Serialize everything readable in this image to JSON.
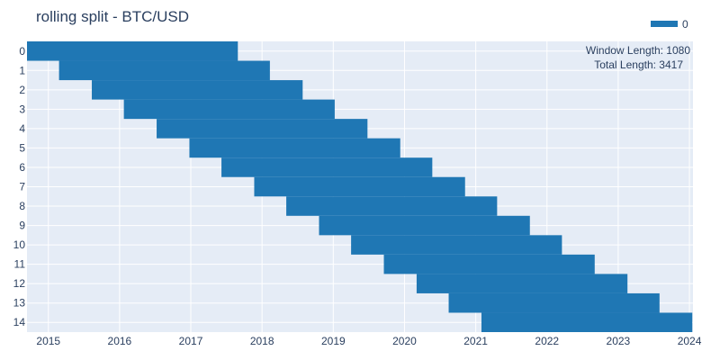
{
  "colors": {
    "plot_background": "#e5ecf6",
    "grid": "#ffffff",
    "bar": "#1f77b4",
    "text": "#2a3f5f"
  },
  "chart_data": {
    "type": "bar",
    "orientation": "horizontal",
    "title": "rolling split - BTC/USD",
    "legend": {
      "entries": [
        "0"
      ],
      "placement": "top-right"
    },
    "annotations": [
      "Window Length: 1080",
      "Total Length: 3417"
    ],
    "x_axis": {
      "type": "date",
      "range": [
        2014.7,
        2024.05
      ],
      "tick_labels": [
        "2015",
        "2016",
        "2017",
        "2018",
        "2019",
        "2020",
        "2021",
        "2022",
        "2023",
        "2024"
      ],
      "tick_values": [
        2015,
        2016,
        2017,
        2018,
        2019,
        2020,
        2021,
        2022,
        2023,
        2024
      ]
    },
    "y_axis": {
      "categories": [
        "0",
        "1",
        "2",
        "3",
        "4",
        "5",
        "6",
        "7",
        "8",
        "9",
        "10",
        "11",
        "12",
        "13",
        "14"
      ],
      "reversed": true
    },
    "series": [
      {
        "name": "0",
        "splits": [
          {
            "split": "0",
            "start": 2014.7,
            "end": 2017.66
          },
          {
            "split": "1",
            "start": 2015.15,
            "end": 2018.11
          },
          {
            "split": "2",
            "start": 2015.61,
            "end": 2018.57
          },
          {
            "split": "3",
            "start": 2016.06,
            "end": 2019.02
          },
          {
            "split": "4",
            "start": 2016.52,
            "end": 2019.48
          },
          {
            "split": "5",
            "start": 2016.98,
            "end": 2019.94
          },
          {
            "split": "6",
            "start": 2017.43,
            "end": 2020.39
          },
          {
            "split": "7",
            "start": 2017.89,
            "end": 2020.85
          },
          {
            "split": "8",
            "start": 2018.34,
            "end": 2021.3
          },
          {
            "split": "9",
            "start": 2018.8,
            "end": 2021.76
          },
          {
            "split": "10",
            "start": 2019.25,
            "end": 2022.21
          },
          {
            "split": "11",
            "start": 2019.71,
            "end": 2022.67
          },
          {
            "split": "12",
            "start": 2020.17,
            "end": 2023.13
          },
          {
            "split": "13",
            "start": 2020.62,
            "end": 2023.58
          },
          {
            "split": "14",
            "start": 2021.08,
            "end": 2024.04
          }
        ]
      }
    ]
  }
}
